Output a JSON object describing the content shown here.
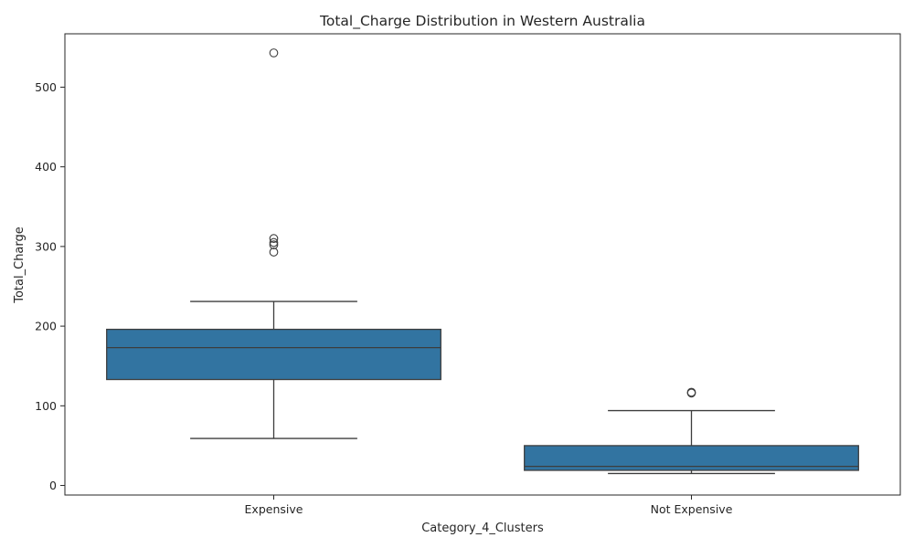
{
  "chart_data": {
    "type": "box",
    "title": "Total_Charge Distribution in Western Australia",
    "xlabel": "Category_4_Clusters",
    "ylabel": "Total_Charge",
    "ylim": [
      -12,
      567
    ],
    "yticks": [
      0,
      100,
      200,
      300,
      400,
      500
    ],
    "grid": false,
    "box_color": "#3274a1",
    "line_color": "#3d3d3d",
    "categories": [
      "Expensive",
      "Not Expensive"
    ],
    "boxes": [
      {
        "category": "Expensive",
        "whisker_low": 59,
        "q1": 133,
        "median": 173,
        "q3": 196,
        "whisker_high": 231,
        "outliers": [
          293,
          302,
          305,
          310,
          543
        ]
      },
      {
        "category": "Not Expensive",
        "whisker_low": 15,
        "q1": 19,
        "median": 24,
        "q3": 50,
        "whisker_high": 94,
        "outliers": [
          116,
          117
        ]
      }
    ]
  }
}
